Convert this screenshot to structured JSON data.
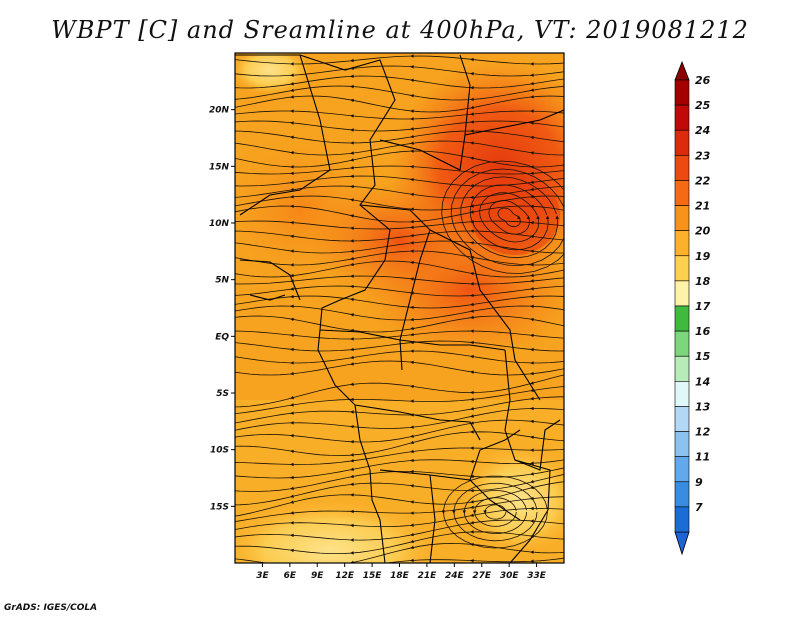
{
  "title": "WBPT [C] and Sreamline at 400hPa, VT: 2019081212",
  "credit": "GrADS: IGES/COLA",
  "map": {
    "lon_range": [
      0,
      36
    ],
    "lat_range": [
      -20,
      25
    ],
    "lon_ticks": [
      {
        "value": 3,
        "label": "3E"
      },
      {
        "value": 6,
        "label": "6E"
      },
      {
        "value": 9,
        "label": "9E"
      },
      {
        "value": 12,
        "label": "12E"
      },
      {
        "value": 15,
        "label": "15E"
      },
      {
        "value": 18,
        "label": "18E"
      },
      {
        "value": 21,
        "label": "21E"
      },
      {
        "value": 24,
        "label": "24E"
      },
      {
        "value": 27,
        "label": "27E"
      },
      {
        "value": 30,
        "label": "30E"
      },
      {
        "value": 33,
        "label": "33E"
      }
    ],
    "lat_ticks": [
      {
        "value": 20,
        "label": "20N"
      },
      {
        "value": 15,
        "label": "15N"
      },
      {
        "value": 10,
        "label": "10N"
      },
      {
        "value": 5,
        "label": "5N"
      },
      {
        "value": 0,
        "label": "EQ"
      },
      {
        "value": -5,
        "label": "5S"
      },
      {
        "value": -10,
        "label": "10S"
      },
      {
        "value": -15,
        "label": "15S"
      }
    ]
  },
  "colorbar": {
    "levels": [
      {
        "label": "26",
        "color": "#a50000"
      },
      {
        "label": "25",
        "color": "#c00a0a"
      },
      {
        "label": "24",
        "color": "#dc2a0c"
      },
      {
        "label": "23",
        "color": "#ec4a10"
      },
      {
        "label": "22",
        "color": "#f56a14"
      },
      {
        "label": "21",
        "color": "#f7921a"
      },
      {
        "label": "20",
        "color": "#fbb12a"
      },
      {
        "label": "19",
        "color": "#fdd050"
      },
      {
        "label": "18",
        "color": "#fff3a8"
      },
      {
        "label": "17",
        "color": "#3fba3f"
      },
      {
        "label": "16",
        "color": "#7cd67c"
      },
      {
        "label": "15",
        "color": "#b7ebb7"
      },
      {
        "label": "14",
        "color": "#e0f8f8"
      },
      {
        "label": "13",
        "color": "#b3d8f5"
      },
      {
        "label": "12",
        "color": "#8cc2f0"
      },
      {
        "label": "11",
        "color": "#62a8ea"
      },
      {
        "label": "9",
        "color": "#3a8ce0"
      },
      {
        "label": "7",
        "color": "#1c6cd6"
      }
    ],
    "top_color": "#8c0000",
    "bottom_color": "#1e64d2"
  }
}
